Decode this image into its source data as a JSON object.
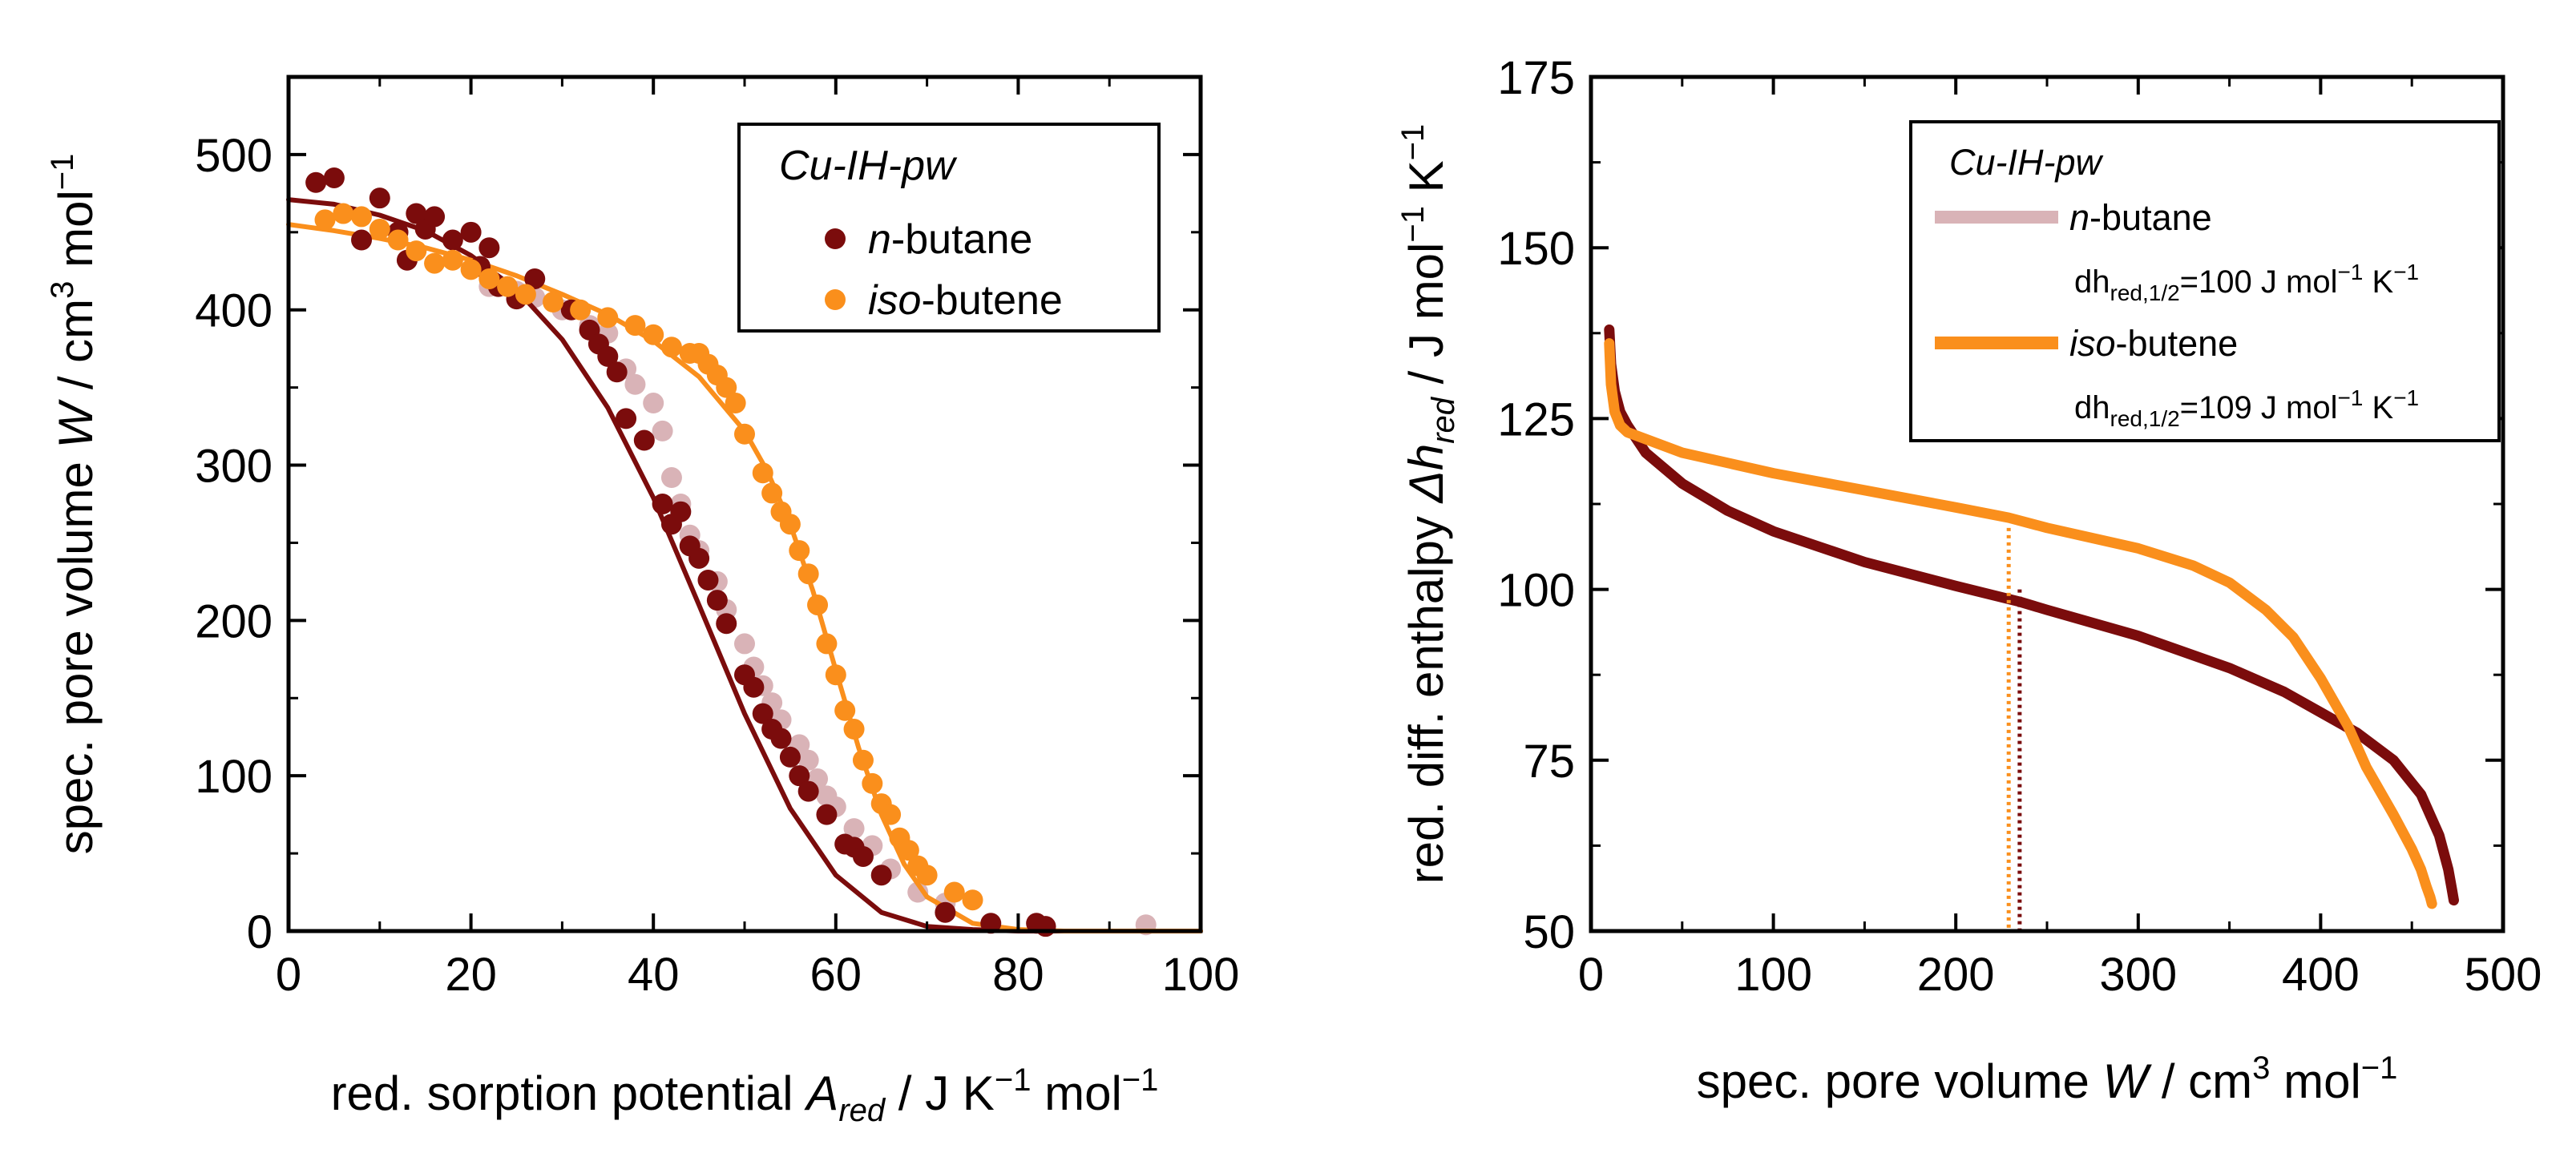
{
  "colors": {
    "n_butane": "#7b0c0c",
    "iso_butene": "#fa8f1c",
    "n_butane_ref": "#d9b3b7",
    "axis": "#000000",
    "background": "#ffffff"
  },
  "chart_data": [
    {
      "type": "scatter",
      "title": "",
      "xlabel": {
        "main": "red. sorption potential ",
        "sym": "A",
        "sub": "red",
        "unit": " / J K",
        "sup1": "−1",
        "mid": " mol",
        "sup2": "−1"
      },
      "ylabel": {
        "main": "spec. pore volume ",
        "sym": "W",
        "unit": " / cm",
        "sup1": "3",
        "mid": " mol",
        "sup2": "−1"
      },
      "xlim": [
        0,
        100
      ],
      "ylim": [
        0,
        550
      ],
      "xticks": [
        0,
        20,
        40,
        60,
        80,
        100
      ],
      "yticks": [
        0,
        100,
        200,
        300,
        400,
        500
      ],
      "legend": {
        "position": "top-right",
        "title": "Cu-IH-pw",
        "entries": [
          {
            "italic": "n",
            "text": "-butane"
          },
          {
            "italic": "iso",
            "text": "-butene"
          }
        ]
      },
      "series": [
        {
          "name": "n-butane",
          "marker": "circle",
          "color_key": "n_butane",
          "points": [
            [
              3,
              482
            ],
            [
              5,
              485
            ],
            [
              8,
              445
            ],
            [
              10,
              472
            ],
            [
              12,
              450
            ],
            [
              13,
              432
            ],
            [
              14,
              462
            ],
            [
              15,
              452
            ],
            [
              16,
              460
            ],
            [
              18,
              445
            ],
            [
              20,
              450
            ],
            [
              21,
              428
            ],
            [
              22,
              440
            ],
            [
              23,
              415
            ],
            [
              25,
              407
            ],
            [
              27,
              420
            ],
            [
              31,
              400
            ],
            [
              33,
              387
            ],
            [
              34,
              378
            ],
            [
              35,
              370
            ],
            [
              36,
              360
            ],
            [
              37,
              330
            ],
            [
              39,
              316
            ],
            [
              41,
              275
            ],
            [
              42,
              262
            ],
            [
              43,
              270
            ],
            [
              44,
              248
            ],
            [
              45,
              240
            ],
            [
              46,
              226
            ],
            [
              47,
              213
            ],
            [
              48,
              198
            ],
            [
              50,
              165
            ],
            [
              51,
              157
            ],
            [
              52,
              140
            ],
            [
              53,
              130
            ],
            [
              54,
              124
            ],
            [
              55,
              112
            ],
            [
              56,
              100
            ],
            [
              57,
              90
            ],
            [
              59,
              75
            ],
            [
              61,
              56
            ],
            [
              62,
              54
            ],
            [
              63,
              48
            ],
            [
              65,
              36
            ],
            [
              72,
              12
            ],
            [
              77,
              5
            ],
            [
              82,
              5
            ],
            [
              83,
              3
            ]
          ]
        },
        {
          "name": "iso-butene",
          "marker": "circle",
          "color_key": "iso_butene",
          "points": [
            [
              4,
              458
            ],
            [
              6,
              462
            ],
            [
              8,
              460
            ],
            [
              10,
              452
            ],
            [
              12,
              445
            ],
            [
              14,
              438
            ],
            [
              16,
              430
            ],
            [
              18,
              432
            ],
            [
              20,
              426
            ],
            [
              22,
              420
            ],
            [
              24,
              415
            ],
            [
              26,
              410
            ],
            [
              29,
              405
            ],
            [
              32,
              400
            ],
            [
              35,
              395
            ],
            [
              38,
              390
            ],
            [
              40,
              384
            ],
            [
              42,
              376
            ],
            [
              44,
              372
            ],
            [
              45,
              372
            ],
            [
              46,
              365
            ],
            [
              47,
              358
            ],
            [
              48,
              350
            ],
            [
              49,
              340
            ],
            [
              50,
              320
            ],
            [
              52,
              295
            ],
            [
              53,
              282
            ],
            [
              54,
              270
            ],
            [
              55,
              262
            ],
            [
              56,
              245
            ],
            [
              57,
              230
            ],
            [
              58,
              210
            ],
            [
              59,
              185
            ],
            [
              60,
              165
            ],
            [
              61,
              142
            ],
            [
              62,
              130
            ],
            [
              63,
              110
            ],
            [
              64,
              95
            ],
            [
              65,
              82
            ],
            [
              66,
              75
            ],
            [
              67,
              60
            ],
            [
              68,
              52
            ],
            [
              69,
              42
            ],
            [
              70,
              36
            ],
            [
              73,
              25
            ],
            [
              75,
              20
            ]
          ]
        },
        {
          "name": "n-butane (reference)",
          "marker": "circle",
          "color_key": "n_butane_ref",
          "points": [
            [
              22,
              415
            ],
            [
              25,
              412
            ],
            [
              27,
              408
            ],
            [
              30,
              400
            ],
            [
              33,
              390
            ],
            [
              35,
              385
            ],
            [
              37,
              362
            ],
            [
              38,
              352
            ],
            [
              40,
              340
            ],
            [
              41,
              322
            ],
            [
              42,
              292
            ],
            [
              43,
              275
            ],
            [
              44,
              255
            ],
            [
              45,
              245
            ],
            [
              47,
              225
            ],
            [
              48,
              207
            ],
            [
              50,
              185
            ],
            [
              51,
              170
            ],
            [
              52,
              158
            ],
            [
              53,
              147
            ],
            [
              54,
              136
            ],
            [
              56,
              120
            ],
            [
              57,
              110
            ],
            [
              58,
              98
            ],
            [
              59,
              87
            ],
            [
              60,
              80
            ],
            [
              62,
              66
            ],
            [
              64,
              55
            ],
            [
              66,
              40
            ],
            [
              69,
              25
            ],
            [
              72,
              18
            ],
            [
              94,
              4
            ]
          ]
        },
        {
          "name": "n-butane fit",
          "type": "line",
          "color_key": "n_butane",
          "x": [
            0,
            5,
            10,
            15,
            20,
            25,
            30,
            35,
            40,
            45,
            50,
            55,
            60,
            65,
            70,
            75,
            80,
            85,
            90,
            95,
            100
          ],
          "values": [
            471,
            468,
            461,
            451,
            435,
            413,
            381,
            337,
            279,
            210,
            140,
            79,
            36,
            12,
            3,
            1,
            0,
            0,
            0,
            0,
            0
          ]
        },
        {
          "name": "iso-butene fit",
          "type": "line",
          "color_key": "iso_butene",
          "x": [
            0,
            5,
            10,
            15,
            20,
            25,
            30,
            35,
            40,
            45,
            50,
            52.5,
            55,
            57.5,
            60,
            62.5,
            65,
            67.5,
            70,
            75,
            80,
            85,
            90,
            95,
            100
          ],
          "values": [
            455,
            451,
            446,
            440,
            432,
            422,
            410,
            397,
            380,
            357,
            322,
            296,
            262,
            219,
            168,
            118,
            75,
            43,
            22,
            5,
            1,
            0,
            0,
            0,
            0
          ]
        }
      ]
    },
    {
      "type": "line",
      "title": "",
      "xlabel": {
        "main": "spec. pore volume ",
        "sym": "W",
        "unit": " / cm",
        "sup1": "3",
        "mid": " mol",
        "sup2": "−1"
      },
      "ylabel": {
        "main": "red. diff. enthalpy ",
        "sym": "Δh",
        "sub": "red",
        "unit": " / J mol",
        "sup1": "−1",
        "mid": " K",
        "sup2": "−1"
      },
      "xlim": [
        0,
        500
      ],
      "ylim": [
        50,
        175
      ],
      "xticks": [
        0,
        100,
        200,
        300,
        400,
        500
      ],
      "yticks": [
        50,
        75,
        100,
        125,
        150,
        175
      ],
      "legend": {
        "position": "top-right",
        "title": "Cu-IH-pw",
        "entries": [
          {
            "italic": "n",
            "text": "-butane",
            "value_prefix": "dh",
            "value_sub": "red,1/2",
            "value_text": "=100 J mol",
            "value_sup1": "−1",
            "value_mid": " K",
            "value_sup2": "−1"
          },
          {
            "italic": "iso",
            "text": "-butene",
            "value_prefix": "dh",
            "value_sub": "red,1/2",
            "value_text": "=109 J mol",
            "value_sup1": "−1",
            "value_mid": " K",
            "value_sup2": "−1"
          }
        ]
      },
      "series": [
        {
          "name": "n-butane",
          "color_key": "n_butane",
          "x": [
            10,
            11,
            13,
            16,
            20,
            30,
            50,
            75,
            100,
            150,
            200,
            235,
            250,
            300,
            350,
            380,
            400,
            420,
            440,
            455,
            465,
            470,
            472,
            473
          ],
          "values": [
            138,
            133,
            129,
            126,
            124,
            120,
            115.5,
            111.5,
            108.5,
            104,
            100.5,
            98.2,
            97,
            93.2,
            88.5,
            85,
            82,
            79,
            75,
            70,
            64,
            59,
            56,
            54.5
          ]
        },
        {
          "name": "iso-butene",
          "color_key": "iso_butene",
          "x": [
            10,
            11,
            13,
            16,
            20,
            30,
            50,
            100,
            150,
            200,
            229,
            250,
            300,
            330,
            350,
            370,
            385,
            400,
            415,
            425,
            440,
            450,
            455,
            458,
            460,
            461
          ],
          "values": [
            136,
            130,
            126,
            124,
            123,
            122,
            120,
            117,
            114.5,
            112,
            110.5,
            109,
            106,
            103.5,
            101,
            97,
            93,
            87,
            80,
            74,
            67,
            62,
            59,
            56.5,
            55,
            54
          ]
        }
      ],
      "markers": [
        {
          "name": "n-butane half-point",
          "color_key": "n_butane",
          "x": 235,
          "y": 100
        },
        {
          "name": "iso-butene half-point",
          "color_key": "iso_butene",
          "x": 229,
          "y": 109
        }
      ]
    }
  ]
}
